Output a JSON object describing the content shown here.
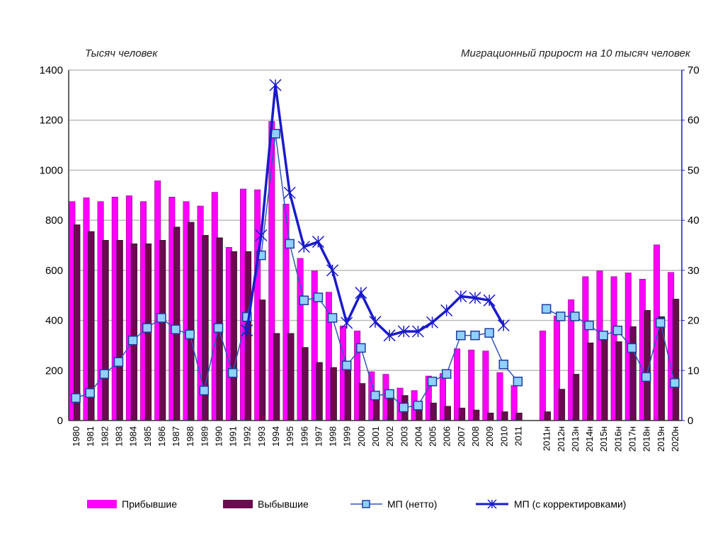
{
  "chart_data": {
    "type": "bar",
    "left_axis_label": "Тысяч человек",
    "right_axis_label": "Миграционный прирост на 10 тысяч человек",
    "ylim_left": [
      0,
      1400
    ],
    "yticks_left": [
      0,
      200,
      400,
      600,
      800,
      1000,
      1200,
      1400
    ],
    "ylim_right": [
      0,
      70
    ],
    "yticks_right": [
      0,
      10,
      20,
      30,
      40,
      50,
      60,
      70
    ],
    "grid": true,
    "legend_position": "bottom",
    "categories": [
      "1980",
      "1981",
      "1982",
      "1983",
      "1984",
      "1985",
      "1986",
      "1987",
      "1988",
      "1989",
      "1990",
      "1991",
      "1992",
      "1993",
      "1994",
      "1995",
      "1996",
      "1997",
      "1998",
      "1999",
      "2000",
      "2001",
      "2002",
      "2003",
      "2004",
      "2005",
      "2006",
      "2007",
      "2008",
      "2009",
      "2010",
      "2011",
      "",
      "2011н",
      "2012н",
      "2013н",
      "2014н",
      "2015н",
      "2016н",
      "2017н",
      "2018н",
      "2019н",
      "2020н"
    ],
    "series": [
      {
        "name": "Прибывшие",
        "type": "bar",
        "axis": "left",
        "color": "#ff00ff",
        "values": [
          875,
          890,
          875,
          893,
          898,
          875,
          958,
          893,
          875,
          857,
          912,
          692,
          925,
          922,
          1195,
          865,
          648,
          598,
          513,
          378,
          358,
          195,
          185,
          130,
          120,
          178,
          188,
          287,
          282,
          278,
          192,
          140,
          null,
          358,
          418,
          483,
          575,
          598,
          575,
          590,
          565,
          702,
          592
        ]
      },
      {
        "name": "Выбывшие",
        "type": "bar",
        "axis": "left",
        "color": "#6b0a4f",
        "values": [
          782,
          755,
          720,
          720,
          706,
          706,
          720,
          773,
          792,
          740,
          730,
          675,
          675,
          482,
          348,
          348,
          292,
          232,
          212,
          210,
          148,
          110,
          95,
          100,
          75,
          70,
          57,
          50,
          42,
          30,
          35,
          30,
          null,
          35,
          125,
          185,
          310,
          345,
          315,
          375,
          440,
          415,
          485
        ]
      },
      {
        "name": "МП  (нетто)",
        "type": "line",
        "axis": "right",
        "color": "#3355bb",
        "marker": "square",
        "values": [
          4.5,
          5.5,
          9.3,
          11.7,
          16,
          18.5,
          20.5,
          18.2,
          17.2,
          6,
          18.5,
          9.5,
          20.7,
          33,
          57.3,
          35.3,
          24,
          24.6,
          20.5,
          11,
          14.5,
          5,
          5.3,
          2.6,
          3,
          7.8,
          9.3,
          17,
          17,
          17.5,
          11.2,
          7.8,
          null,
          22.3,
          20.8,
          20.8,
          19,
          17,
          18,
          14.5,
          8.7,
          19.5,
          7.5
        ]
      },
      {
        "name": "МП  (с корректировками)",
        "type": "line",
        "axis": "right",
        "color": "#1a1acc",
        "marker": "star",
        "values": [
          null,
          null,
          null,
          null,
          null,
          null,
          null,
          null,
          null,
          null,
          null,
          null,
          18,
          37,
          67,
          45.5,
          34.7,
          35.7,
          30,
          19.5,
          25.5,
          19.7,
          17,
          17.8,
          17.8,
          19.6,
          22,
          24.8,
          24.5,
          24,
          19,
          null,
          null,
          null,
          null,
          null,
          null,
          null,
          null,
          null,
          null,
          null,
          null
        ]
      }
    ]
  }
}
